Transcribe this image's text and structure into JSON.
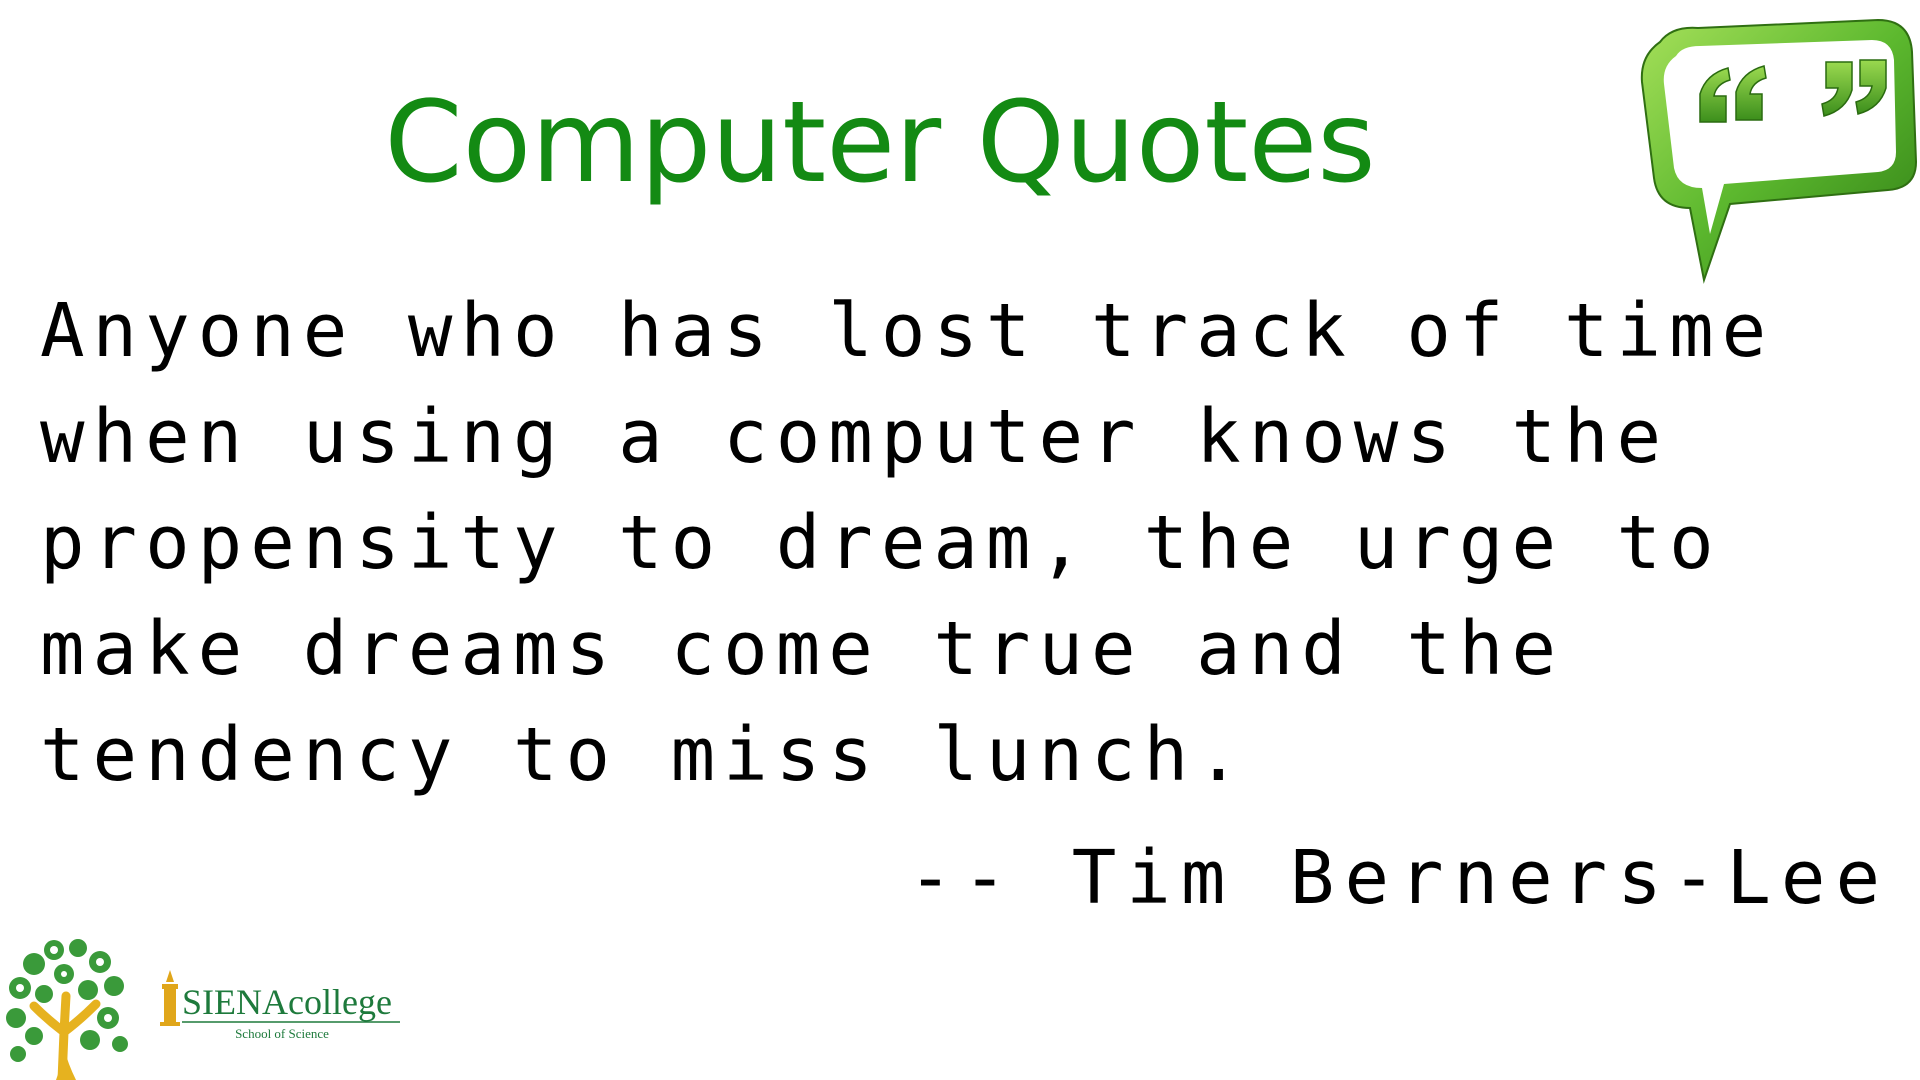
{
  "slide": {
    "title": "Computer Quotes",
    "quote_lines": [
      "Anyone who has lost track of time",
      "when using a computer knows the",
      "propensity to dream, the urge to",
      "make dreams come true and the",
      "tendency to miss lunch."
    ],
    "author": "-- Tim Berners-Lee"
  },
  "logos": {
    "tree_logo_icon": "science-tree-icon",
    "quote_bubble_icon": "speech-bubble-quote-icon",
    "siena_wordmark": "SIENAcollege",
    "siena_subtitle": "School of Science"
  },
  "colors": {
    "title_green": "#138a13",
    "bubble_green": "#5cb82e",
    "siena_green": "#1e7a3c",
    "siena_gold": "#e0a61a"
  }
}
